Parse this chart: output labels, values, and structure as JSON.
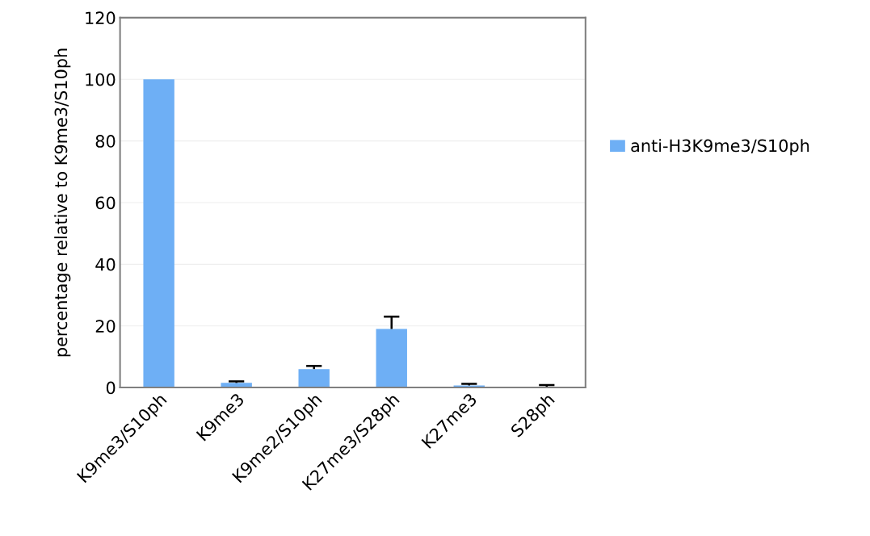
{
  "chart_data": {
    "type": "bar",
    "ylabel": "percentage relative to K9me3/S10ph",
    "categories": [
      "K9me3/S10ph",
      "K9me3",
      "K9me2/S10ph",
      "K27me3/S28ph",
      "K27me3",
      "S28ph"
    ],
    "series": [
      {
        "name": "anti-H3K9me3/S10ph",
        "color": "#6eaff5",
        "values": [
          100,
          1.5,
          6,
          19,
          0.7,
          0.3
        ],
        "errors": [
          null,
          [
            1.5,
            2
          ],
          [
            6,
            7
          ],
          [
            19,
            23
          ],
          [
            0.7,
            1.2
          ],
          [
            0.3,
            0.8
          ]
        ]
      }
    ],
    "ylim": [
      0,
      120
    ],
    "yticks": [
      0,
      20,
      40,
      60,
      80,
      100,
      120
    ],
    "grid": "y",
    "legend": "right"
  }
}
